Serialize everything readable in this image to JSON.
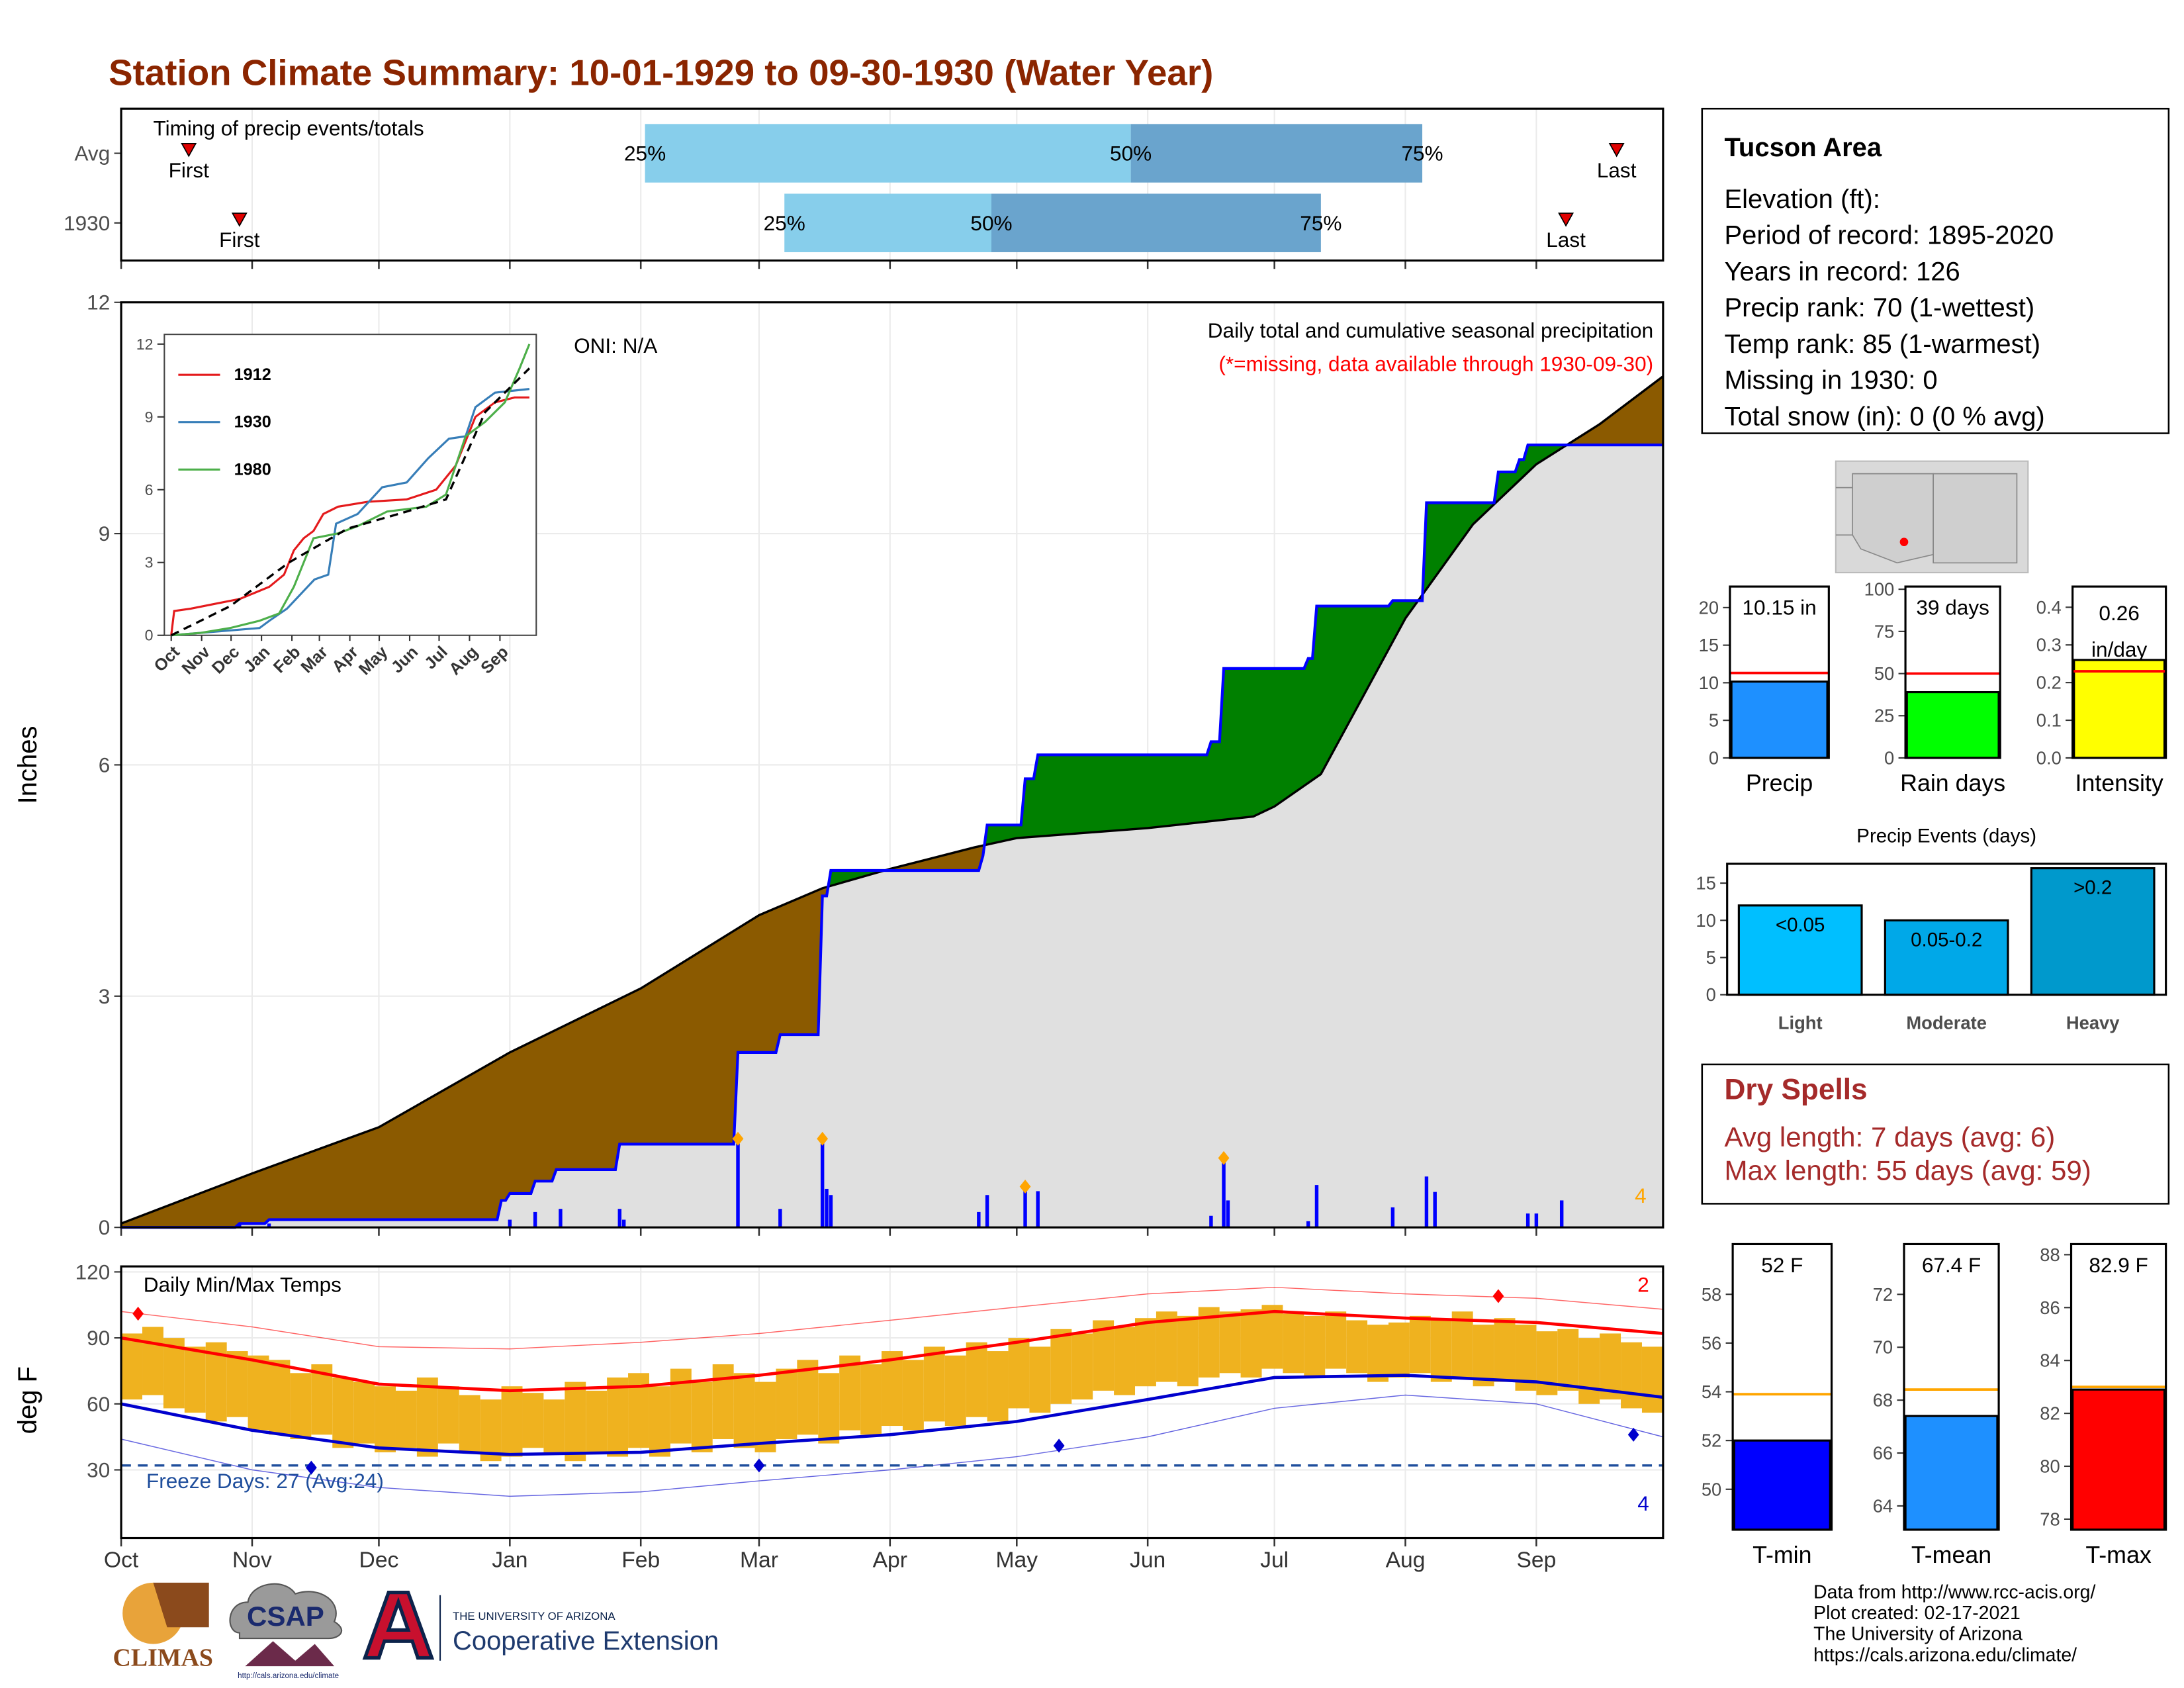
{
  "title": "Station Climate Summary: 10-01-1929 to 09-30-1930 (Water Year)",
  "info": {
    "title": "Tucson Area",
    "lines": [
      "Elevation (ft):",
      "Period of record: 1895-2020",
      "Years in record: 126",
      "Precip rank: 70 (1-wettest)",
      "Temp rank: 85 (1-warmest)",
      "Missing in 1930: 0",
      "Total snow (in): 0 (0 % avg)"
    ]
  },
  "dry_spells": {
    "title": "Dry Spells",
    "lines": [
      "Avg length: 7 days (avg: 6)",
      "Max length: 55 days (avg: 59)"
    ]
  },
  "footer": {
    "logos": [
      "CLIMAS",
      "CSAP",
      "http://cals.arizona.edu/climate",
      "THE UNIVERSITY OF ARIZONA",
      "Cooperative Extension"
    ],
    "credits": [
      "Data from http://www.rcc-acis.org/",
      "Plot created: 02-17-2021",
      "The University of Arizona",
      "https://cals.arizona.edu/climate/"
    ]
  },
  "chart_data": [
    {
      "type": "timing",
      "title": "Timing of precip events/totals",
      "categories": [
        "Avg",
        "1930"
      ],
      "labels": [
        "First",
        "25%",
        "50%",
        "75%",
        "Last"
      ],
      "values": [
        [
          16,
          124,
          239,
          308,
          354
        ],
        [
          28,
          157,
          206,
          284,
          342
        ]
      ],
      "colors": [
        "#87ceeb",
        "#6aa4cd"
      ],
      "marker_color": "#e00000",
      "xlim": [
        0,
        365
      ]
    },
    {
      "type": "area",
      "annotations": [
        "ONI: N/A",
        "Daily total and cumulative seasonal precipitation",
        "(*=missing, data available through 1930-09-30)"
      ],
      "annotation_colors": [
        "#000000",
        "#000000",
        "#ff0000"
      ],
      "ylabel": "Inches",
      "ylim": [
        0,
        12
      ],
      "yticks": [
        0,
        3,
        6,
        9,
        12
      ],
      "xlim": [
        0,
        365
      ],
      "grid": true,
      "average": {
        "x": [
          0,
          31,
          61,
          92,
          123,
          151,
          166,
          182,
          202,
          212,
          243,
          268,
          273,
          284,
          304,
          320,
          335,
          350,
          365
        ],
        "values": [
          0.05,
          0.7,
          1.3,
          2.27,
          3.1,
          4.05,
          4.4,
          4.65,
          4.93,
          5.05,
          5.18,
          5.33,
          5.46,
          5.88,
          7.9,
          9.12,
          9.9,
          10.42,
          11.04
        ],
        "color": "#000000"
      },
      "observed": {
        "x": [
          0,
          27,
          28,
          34,
          35,
          89,
          90,
          91,
          92,
          97,
          98,
          102,
          103,
          117,
          118,
          145,
          146,
          155,
          156,
          165,
          166,
          167,
          168,
          203,
          204,
          205,
          213,
          214,
          216,
          217,
          257,
          258,
          260,
          261,
          280,
          281,
          282,
          283,
          300,
          301,
          308,
          309,
          325,
          326,
          330,
          331,
          332,
          333,
          365
        ],
        "values": [
          0,
          0,
          0.05,
          0.05,
          0.1,
          0.1,
          0.35,
          0.35,
          0.44,
          0.44,
          0.6,
          0.6,
          0.75,
          0.75,
          1.08,
          1.08,
          2.27,
          2.27,
          2.5,
          2.5,
          4.3,
          4.3,
          4.63,
          4.63,
          4.82,
          5.22,
          5.22,
          5.82,
          5.82,
          6.13,
          6.13,
          6.3,
          6.3,
          7.25,
          7.25,
          7.38,
          7.38,
          8.06,
          8.06,
          8.13,
          8.13,
          9.4,
          9.4,
          9.8,
          9.8,
          9.96,
          9.96,
          10.15,
          10.15
        ],
        "color": "#0000ff"
      },
      "fills": {
        "below": "#8b5a00",
        "above": "#008000",
        "common": "#e0e0e0"
      },
      "daily": {
        "x": [
          28,
          35,
          92,
          98,
          104,
          118,
          119,
          146,
          156,
          166,
          167,
          168,
          203,
          205,
          214,
          217,
          258,
          261,
          262,
          281,
          283,
          301,
          309,
          311,
          333,
          335,
          341
        ],
        "values": [
          0.05,
          0.05,
          0.1,
          0.2,
          0.24,
          0.24,
          0.1,
          1.15,
          0.24,
          1.15,
          0.5,
          0.42,
          0.2,
          0.42,
          0.53,
          0.47,
          0.15,
          0.9,
          0.35,
          0.08,
          0.55,
          0.26,
          0.66,
          0.46,
          0.18,
          0.18,
          0.35
        ],
        "color": "#0000ff"
      },
      "top_events": {
        "x": [
          146,
          166,
          214,
          261
        ],
        "values": [
          1.15,
          1.15,
          0.53,
          0.9
        ],
        "count": 4,
        "color": "#ffa500"
      }
    },
    {
      "type": "line",
      "xlim": [
        -7,
        372
      ],
      "ylim": [
        0,
        12.4
      ],
      "yticks": [
        0,
        3,
        6,
        9,
        12
      ],
      "xticks": [
        {
          "value": 0,
          "label": "Oct"
        },
        {
          "value": 31,
          "label": "Nov"
        },
        {
          "value": 61,
          "label": "Dec"
        },
        {
          "value": 92,
          "label": "Jan"
        },
        {
          "value": 123,
          "label": "Feb"
        },
        {
          "value": 151,
          "label": "Mar"
        },
        {
          "value": 182,
          "label": "Apr"
        },
        {
          "value": 212,
          "label": "May"
        },
        {
          "value": 243,
          "label": "Jun"
        },
        {
          "value": 273,
          "label": "Jul"
        },
        {
          "value": 304,
          "label": "Aug"
        },
        {
          "value": 335,
          "label": "Sep"
        }
      ],
      "series": [
        {
          "name": "1912",
          "color": "#e41a1c",
          "x": [
            0,
            3,
            20,
            45,
            70,
            100,
            115,
            125,
            135,
            145,
            155,
            170,
            200,
            240,
            270,
            290,
            310,
            330,
            350,
            365
          ],
          "values": [
            0,
            1,
            1.1,
            1.3,
            1.5,
            2,
            2.5,
            3.5,
            4,
            4.3,
            5,
            5.3,
            5.5,
            5.6,
            6,
            7,
            9,
            9.6,
            9.8,
            9.8
          ]
        },
        {
          "name": "1930",
          "color": "#377eb8",
          "x": [
            0,
            90,
            100,
            118,
            146,
            160,
            168,
            190,
            215,
            240,
            262,
            283,
            300,
            310,
            330,
            365
          ],
          "values": [
            0,
            0.3,
            0.6,
            1.1,
            2.3,
            2.5,
            4.6,
            5,
            6.1,
            6.3,
            7.3,
            8.1,
            8.2,
            9.4,
            10,
            10.15
          ]
        },
        {
          "name": "1980",
          "color": "#4daf4a",
          "x": [
            0,
            30,
            60,
            90,
            110,
            125,
            145,
            170,
            190,
            220,
            260,
            280,
            300,
            320,
            340,
            355,
            365
          ],
          "values": [
            0,
            0.1,
            0.3,
            0.6,
            0.9,
            2,
            4,
            4.2,
            4.5,
            5.1,
            5.3,
            5.8,
            8.2,
            8.8,
            9.6,
            11,
            12
          ]
        }
      ],
      "average": {
        "x": [
          0,
          60,
          120,
          180,
          240,
          280,
          320,
          365
        ],
        "values": [
          0,
          1.2,
          3,
          4.4,
          5.1,
          5.6,
          9.2,
          11
        ],
        "color": "#000000"
      }
    },
    {
      "type": "temperature",
      "title": "Daily Min/Max Temps",
      "ylabel": "deg F",
      "ylim": [
        -1,
        122.5
      ],
      "yticks": [
        30,
        60,
        90,
        120
      ],
      "xlim": [
        0,
        365
      ],
      "grid": true,
      "xticks": [
        {
          "value": 0,
          "label": "Oct"
        },
        {
          "value": 31,
          "label": "Nov"
        },
        {
          "value": 61,
          "label": "Dec"
        },
        {
          "value": 92,
          "label": "Jan"
        },
        {
          "value": 123,
          "label": "Feb"
        },
        {
          "value": 151,
          "label": "Mar"
        },
        {
          "value": 182,
          "label": "Apr"
        },
        {
          "value": 212,
          "label": "May"
        },
        {
          "value": 243,
          "label": "Jun"
        },
        {
          "value": 273,
          "label": "Jul"
        },
        {
          "value": 304,
          "label": "Aug"
        },
        {
          "value": 335,
          "label": "Sep"
        }
      ],
      "x": [
        0,
        5,
        10,
        15,
        20,
        25,
        30,
        35,
        40,
        45,
        50,
        55,
        60,
        65,
        70,
        75,
        80,
        85,
        90,
        95,
        100,
        105,
        110,
        115,
        120,
        125,
        130,
        135,
        140,
        145,
        150,
        155,
        160,
        165,
        170,
        175,
        180,
        185,
        190,
        195,
        200,
        205,
        210,
        215,
        220,
        225,
        230,
        235,
        240,
        245,
        250,
        255,
        260,
        265,
        270,
        275,
        280,
        285,
        290,
        295,
        300,
        305,
        310,
        315,
        320,
        325,
        330,
        335,
        340,
        345,
        350,
        355,
        360
      ],
      "max": [
        92,
        95,
        90,
        86,
        88,
        84,
        82,
        80,
        74,
        78,
        72,
        70,
        68,
        66,
        72,
        68,
        64,
        62,
        68,
        65,
        62,
        70,
        66,
        72,
        74,
        68,
        76,
        70,
        78,
        74,
        70,
        76,
        80,
        74,
        82,
        78,
        84,
        80,
        86,
        82,
        88,
        84,
        90,
        86,
        94,
        92,
        98,
        95,
        99,
        102,
        100,
        104,
        102,
        103,
        105,
        101,
        100,
        102,
        98,
        96,
        97,
        100,
        98,
        102,
        96,
        99,
        96,
        93,
        94,
        90,
        92,
        88,
        86
      ],
      "min": [
        62,
        64,
        58,
        56,
        52,
        54,
        48,
        46,
        44,
        46,
        40,
        42,
        38,
        40,
        36,
        42,
        38,
        34,
        36,
        40,
        38,
        34,
        38,
        36,
        40,
        36,
        42,
        38,
        44,
        40,
        38,
        44,
        46,
        42,
        48,
        46,
        50,
        48,
        52,
        50,
        54,
        52,
        58,
        56,
        60,
        62,
        66,
        64,
        68,
        70,
        68,
        72,
        74,
        72,
        76,
        74,
        72,
        76,
        74,
        70,
        72,
        74,
        70,
        72,
        68,
        70,
        66,
        64,
        66,
        60,
        62,
        58,
        56
      ],
      "bar_color": "#efb21f",
      "normal_x": [
        0,
        31,
        61,
        92,
        123,
        151,
        182,
        212,
        243,
        273,
        304,
        335,
        365
      ],
      "normal_max": [
        90,
        80,
        69,
        66,
        68,
        73,
        80,
        88,
        97,
        102,
        99,
        97,
        92
      ],
      "normal_min": [
        60,
        48,
        40,
        37,
        38,
        42,
        46,
        52,
        62,
        72,
        73,
        70,
        63
      ],
      "record_max": [
        102,
        95,
        86,
        85,
        88,
        92,
        98,
        104,
        110,
        113,
        110,
        108,
        103
      ],
      "record_min": [
        44,
        30,
        22,
        18,
        20,
        25,
        30,
        36,
        45,
        58,
        64,
        60,
        45
      ],
      "max_color": "#ff0000",
      "min_color": "#0000cd",
      "record_highs": {
        "x": [
          4,
          326
        ],
        "values": [
          101,
          109
        ],
        "count": 2
      },
      "record_lows": {
        "x": [
          45,
          151,
          222,
          358
        ],
        "values": [
          31,
          32,
          41,
          46
        ],
        "count": 4
      },
      "freeze": 32,
      "freeze_label": "Freeze Days: 27 (Avg:24)",
      "freeze_color": "#1f4e9c"
    },
    {
      "type": "bar",
      "categories": [
        "Precip"
      ],
      "values": [
        10.15
      ],
      "value_labels": [
        "10.15 in"
      ],
      "average": 11.3,
      "avg_color": "#ff0000",
      "color": "#1e90ff",
      "ylim": [
        0,
        22.8
      ],
      "yticks": [
        0,
        5,
        10,
        15,
        20
      ]
    },
    {
      "type": "bar",
      "categories": [
        "Rain days"
      ],
      "values": [
        39
      ],
      "value_labels": [
        "39 days"
      ],
      "average": 50,
      "avg_color": "#ff0000",
      "color": "#00ff00",
      "ylim": [
        0,
        101.6
      ],
      "yticks": [
        0,
        25,
        50,
        75,
        100
      ]
    },
    {
      "type": "bar",
      "categories": [
        "Intensity"
      ],
      "values": [
        0.26
      ],
      "value_labels": [
        "0.26 in/day"
      ],
      "average": 0.23,
      "avg_color": "#ff0000",
      "color": "#ffff00",
      "ylim": [
        0,
        0.455
      ],
      "yticks": [
        {
          "value": 0,
          "label": "0.0"
        },
        0.1,
        0.2,
        0.3,
        0.4
      ]
    },
    {
      "type": "bar",
      "title": "Precip Events (days)",
      "categories": [
        "Light",
        "Moderate",
        "Heavy"
      ],
      "values": [
        12,
        10,
        17
      ],
      "bin_labels": [
        "<0.05",
        "0.05-0.2",
        ">0.2"
      ],
      "colors": [
        "#00bfff",
        "#00a8e8",
        "#0099cc"
      ],
      "ylim": [
        0,
        17.6
      ],
      "yticks": [
        0,
        5,
        10,
        15
      ]
    },
    {
      "type": "bar",
      "categories": [
        "T-min"
      ],
      "values": [
        52
      ],
      "value_labels": [
        "52 F"
      ],
      "average": 53.9,
      "avg_color": "#ffa500",
      "color": "#0000ff",
      "ylim": [
        48.34,
        60.06
      ],
      "yticks": [
        50,
        52,
        54,
        56,
        58
      ]
    },
    {
      "type": "bar",
      "categories": [
        "T-mean"
      ],
      "values": [
        67.4
      ],
      "value_labels": [
        "67.4 F"
      ],
      "average": 68.4,
      "avg_color": "#ffa500",
      "color": "#1e90ff",
      "ylim": [
        63.1,
        73.9
      ],
      "yticks": [
        64,
        66,
        68,
        70,
        72
      ]
    },
    {
      "type": "bar",
      "categories": [
        "T-max"
      ],
      "values": [
        82.9
      ],
      "value_labels": [
        "82.9 F"
      ],
      "average": 83,
      "avg_color": "#ffa500",
      "color": "#ff0000",
      "ylim": [
        77.6,
        88.4
      ],
      "yticks": [
        78,
        80,
        82,
        84,
        86,
        88
      ]
    }
  ]
}
